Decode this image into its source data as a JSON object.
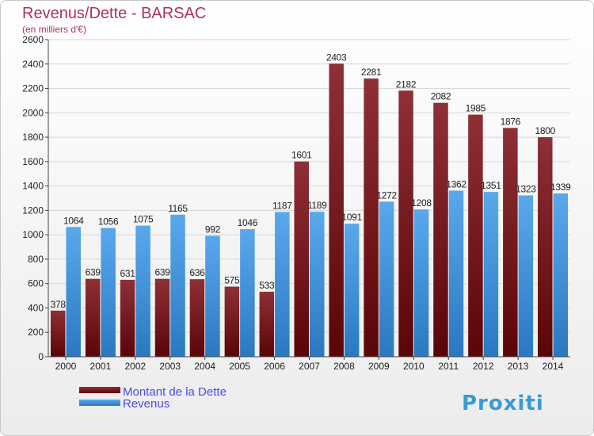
{
  "title": "Revenus/Dette - BARSAC",
  "subtitle": "(en milliers d'€)",
  "logo": "Proxiti",
  "colors": {
    "dette": "#7a1c22",
    "revenus": "#3f8fd8",
    "grid": "#d7d7d7"
  },
  "chart_data": {
    "type": "bar",
    "categories": [
      "2000",
      "2001",
      "2002",
      "2003",
      "2004",
      "2005",
      "2006",
      "2007",
      "2008",
      "2009",
      "2010",
      "2011",
      "2012",
      "2013",
      "2014"
    ],
    "series": [
      {
        "name": "Montant de la Dette",
        "values": [
          378,
          639,
          631,
          639,
          636,
          575,
          533,
          1601,
          2403,
          2281,
          2182,
          2082,
          1985,
          1876,
          1800
        ]
      },
      {
        "name": "Revenus",
        "values": [
          1064,
          1056,
          1075,
          1165,
          992,
          1046,
          1187,
          1189,
          1091,
          1272,
          1208,
          1362,
          1351,
          1323,
          1339
        ]
      }
    ],
    "ylim": [
      0,
      2600
    ],
    "yticks": [
      0,
      200,
      400,
      600,
      800,
      1000,
      1200,
      1400,
      1600,
      1800,
      2000,
      2200,
      2400,
      2600
    ],
    "grid": true,
    "legend": "bottom-left"
  }
}
